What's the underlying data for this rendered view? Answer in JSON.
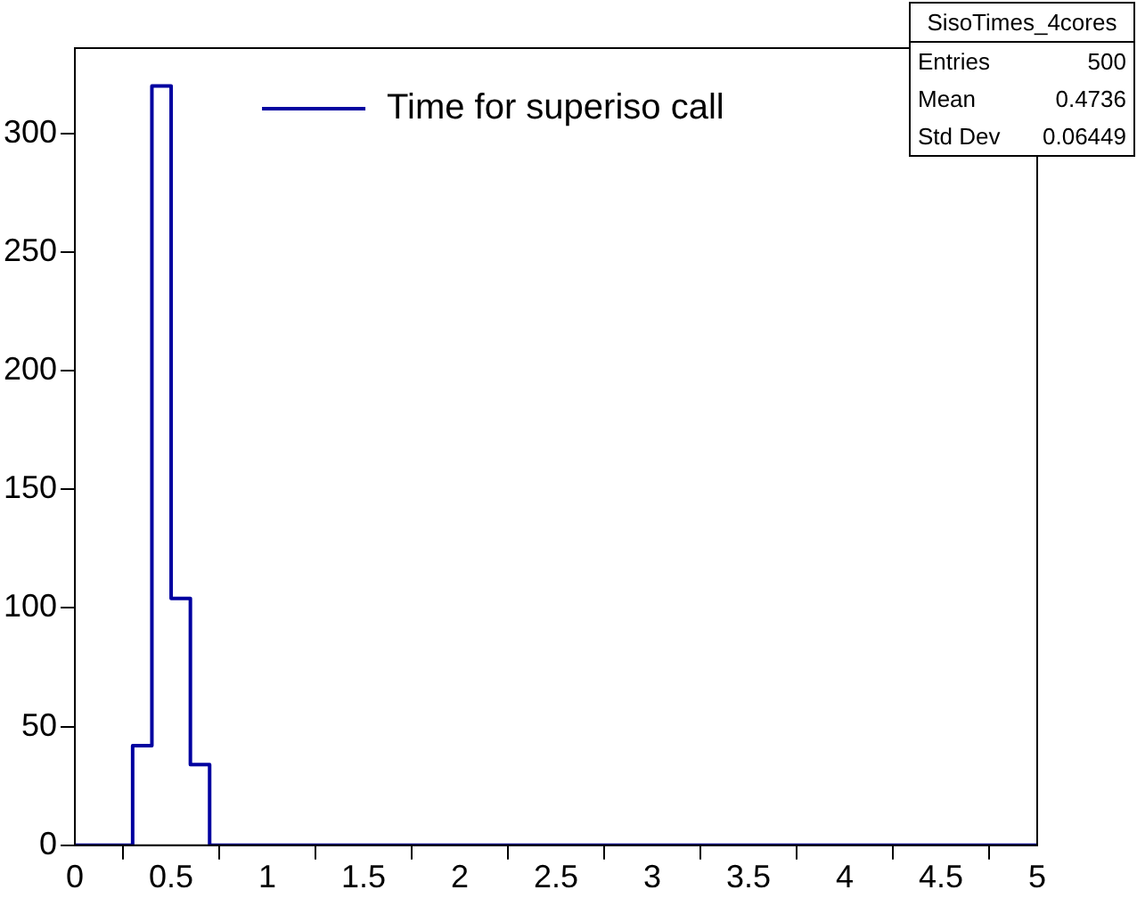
{
  "chart_data": {
    "type": "histogram",
    "bins": [
      0,
      0.1,
      0.2,
      0.3,
      0.4,
      0.5,
      0.6,
      0.7,
      0.8,
      0.9,
      1,
      1.1,
      1.2,
      1.3,
      1.4,
      1.5,
      1.6,
      1.7,
      1.8,
      1.9,
      2,
      2.1,
      2.2,
      2.3,
      2.4,
      2.5,
      2.6,
      2.7,
      2.8,
      2.9,
      3,
      3.1,
      3.2,
      3.3,
      3.4,
      3.5,
      3.6,
      3.7,
      3.8,
      3.9,
      4,
      4.1,
      4.2,
      4.3,
      4.4,
      4.5,
      4.6,
      4.7,
      4.8,
      4.9,
      5
    ],
    "series": [
      {
        "name": "Time for superiso call",
        "color": "#0000a0",
        "values": [
          0,
          0,
          0,
          42,
          320,
          104,
          34,
          0,
          0,
          0,
          0,
          0,
          0,
          0,
          0,
          0,
          0,
          0,
          0,
          0,
          0,
          0,
          0,
          0,
          0,
          0,
          0,
          0,
          0,
          0,
          0,
          0,
          0,
          0,
          0,
          0,
          0,
          0,
          0,
          0,
          0,
          0,
          0,
          0,
          0,
          0,
          0,
          0,
          0,
          0
        ]
      }
    ],
    "xlim": [
      0,
      5
    ],
    "xticks": [
      0,
      0.5,
      1,
      1.5,
      2,
      2.5,
      3,
      3.5,
      4,
      4.5,
      5
    ],
    "ylim": [
      0,
      336
    ],
    "yticks": [
      0,
      50,
      100,
      150,
      200,
      250,
      300
    ],
    "legend": "top left",
    "grid": false,
    "annotations": [
      "SisoTimes_4cores",
      "Entries 500",
      "Mean 0.4736",
      "Std Dev 0.06449"
    ]
  }
}
